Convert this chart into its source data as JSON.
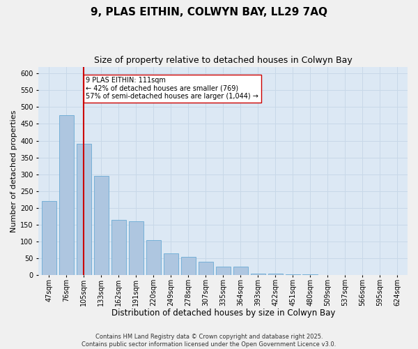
{
  "title1": "9, PLAS EITHIN, COLWYN BAY, LL29 7AQ",
  "title2": "Size of property relative to detached houses in Colwyn Bay",
  "xlabel": "Distribution of detached houses by size in Colwyn Bay",
  "ylabel": "Number of detached properties",
  "categories": [
    "47sqm",
    "76sqm",
    "105sqm",
    "133sqm",
    "162sqm",
    "191sqm",
    "220sqm",
    "249sqm",
    "278sqm",
    "307sqm",
    "335sqm",
    "364sqm",
    "393sqm",
    "422sqm",
    "451sqm",
    "480sqm",
    "509sqm",
    "537sqm",
    "566sqm",
    "595sqm",
    "624sqm"
  ],
  "values": [
    220,
    475,
    390,
    295,
    165,
    160,
    105,
    65,
    55,
    40,
    25,
    25,
    5,
    5,
    2,
    2,
    1,
    1,
    1,
    1,
    1
  ],
  "bar_color": "#aec6e0",
  "bar_edge_color": "#6aaad4",
  "vline_x_index": 2,
  "vline_color": "#cc0000",
  "annotation_text": "9 PLAS EITHIN: 111sqm\n← 42% of detached houses are smaller (769)\n57% of semi-detached houses are larger (1,044) →",
  "annotation_box_color": "#ffffff",
  "annotation_box_edge": "#cc0000",
  "ylim": [
    0,
    620
  ],
  "yticks": [
    0,
    50,
    100,
    150,
    200,
    250,
    300,
    350,
    400,
    450,
    500,
    550,
    600
  ],
  "grid_color": "#c8d8e8",
  "background_color": "#dce8f4",
  "fig_background_color": "#f0f0f0",
  "footer_text": "Contains HM Land Registry data © Crown copyright and database right 2025.\nContains public sector information licensed under the Open Government Licence v3.0.",
  "title1_fontsize": 11,
  "title2_fontsize": 9,
  "xlabel_fontsize": 8.5,
  "ylabel_fontsize": 8,
  "tick_fontsize": 7,
  "annotation_fontsize": 7,
  "footer_fontsize": 6
}
